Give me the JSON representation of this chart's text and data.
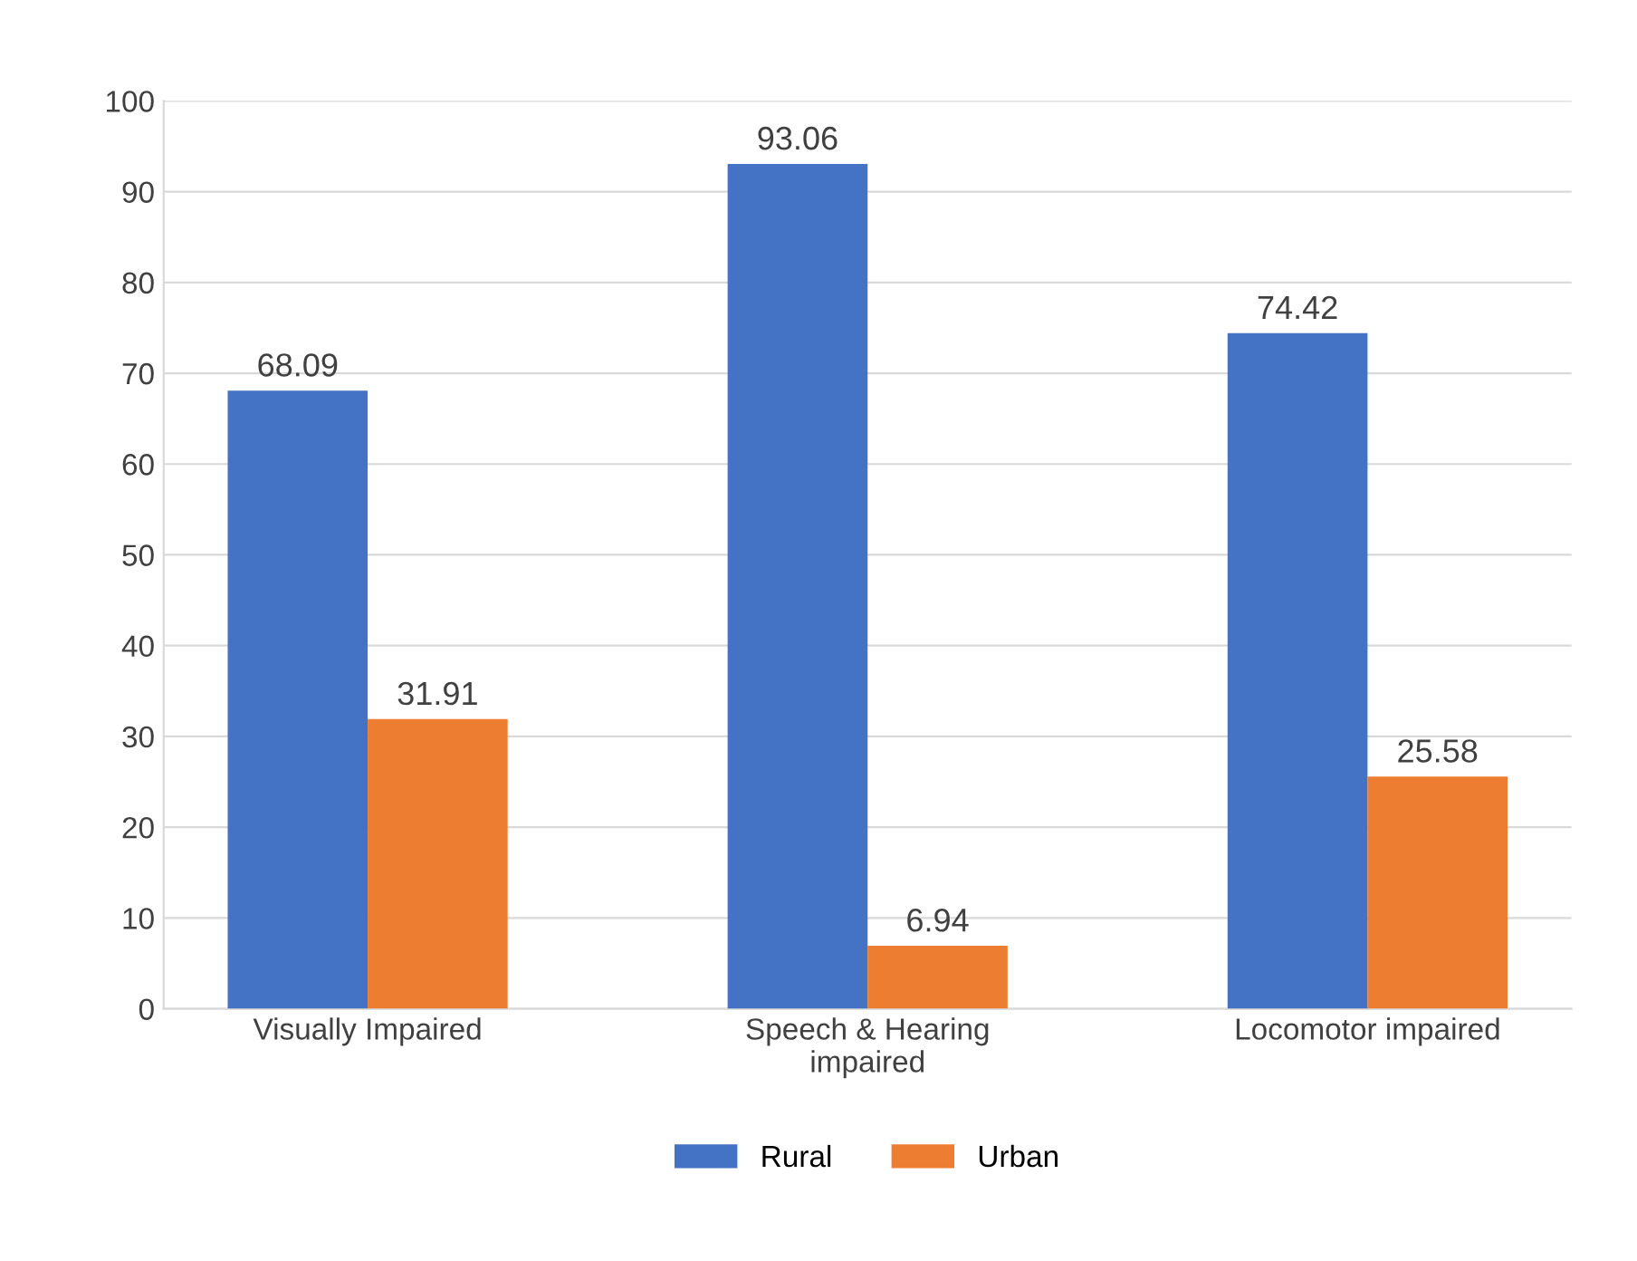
{
  "chart_data": {
    "type": "bar",
    "categories": [
      "Visually Impaired",
      "Speech & Hearing\nimpaired",
      "Locomotor impaired"
    ],
    "series": [
      {
        "name": "Rural",
        "color": "#4472c4",
        "values": [
          68.09,
          93.06,
          74.42
        ]
      },
      {
        "name": "Urban",
        "color": "#ed7d31",
        "values": [
          31.91,
          6.94,
          25.58
        ]
      }
    ],
    "ylim": [
      0,
      100
    ],
    "yticks": [
      0,
      10,
      20,
      30,
      40,
      50,
      60,
      70,
      80,
      90,
      100
    ],
    "grid": "y",
    "legend": "bottom",
    "data_labels": true
  }
}
